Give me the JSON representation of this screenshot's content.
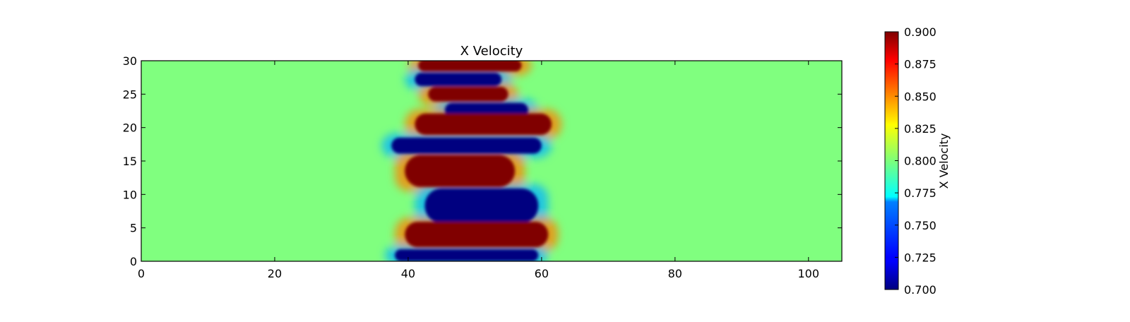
{
  "chart_data": {
    "type": "heatmap",
    "title": "X Velocity",
    "xlabel": "",
    "ylabel": "",
    "xlim": [
      0,
      105
    ],
    "ylim": [
      0,
      30
    ],
    "x_ticks": [
      0,
      20,
      40,
      60,
      80,
      100
    ],
    "y_ticks": [
      0,
      5,
      10,
      15,
      20,
      25,
      30
    ],
    "colormap": "jet",
    "colorbar": {
      "label": "X Velocity",
      "vmin": 0.7,
      "vmax": 0.9,
      "ticks": [
        "0.700",
        "0.725",
        "0.750",
        "0.775",
        "0.800",
        "0.825",
        "0.850",
        "0.875",
        "0.900"
      ]
    },
    "background_value": 0.8,
    "features": [
      {
        "value": 0.9,
        "x_range": [
          41.5,
          57
        ],
        "y_center": 29.3,
        "half_height": 0.9
      },
      {
        "value": 0.7,
        "x_range": [
          41,
          54
        ],
        "y_center": 27.2,
        "half_height": 1.0
      },
      {
        "value": 0.9,
        "x_range": [
          43,
          55
        ],
        "y_center": 25.0,
        "half_height": 1.1
      },
      {
        "value": 0.7,
        "x_range": [
          45.5,
          58
        ],
        "y_center": 22.6,
        "half_height": 1.1
      },
      {
        "value": 0.9,
        "x_range": [
          41,
          61.5
        ],
        "y_center": 20.5,
        "half_height": 1.6
      },
      {
        "value": 0.7,
        "x_range": [
          37.5,
          60
        ],
        "y_center": 17.3,
        "half_height": 1.2
      },
      {
        "value": 0.9,
        "x_range": [
          39.5,
          56
        ],
        "y_center": 13.5,
        "half_height": 2.4
      },
      {
        "value": 0.7,
        "x_range": [
          42.5,
          59.5
        ],
        "y_center": 8.3,
        "half_height": 2.6
      },
      {
        "value": 0.9,
        "x_range": [
          39.5,
          61
        ],
        "y_center": 4.0,
        "half_height": 1.9
      },
      {
        "value": 0.7,
        "x_range": [
          38,
          59.5
        ],
        "y_center": 0.9,
        "half_height": 0.9
      }
    ]
  }
}
